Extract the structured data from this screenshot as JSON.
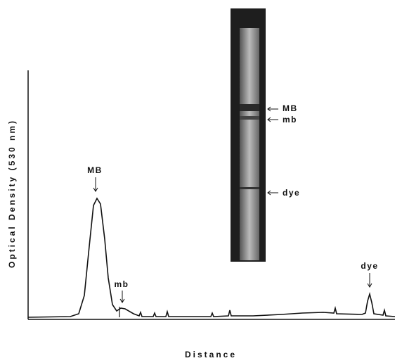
{
  "figure": {
    "y_axis_label": "Optical Density (530 nm)",
    "x_axis_label": "Distance",
    "peak_labels": [
      "MB",
      "mb",
      "dye"
    ],
    "gel_labels": [
      "MB",
      "mb",
      "dye"
    ]
  }
}
